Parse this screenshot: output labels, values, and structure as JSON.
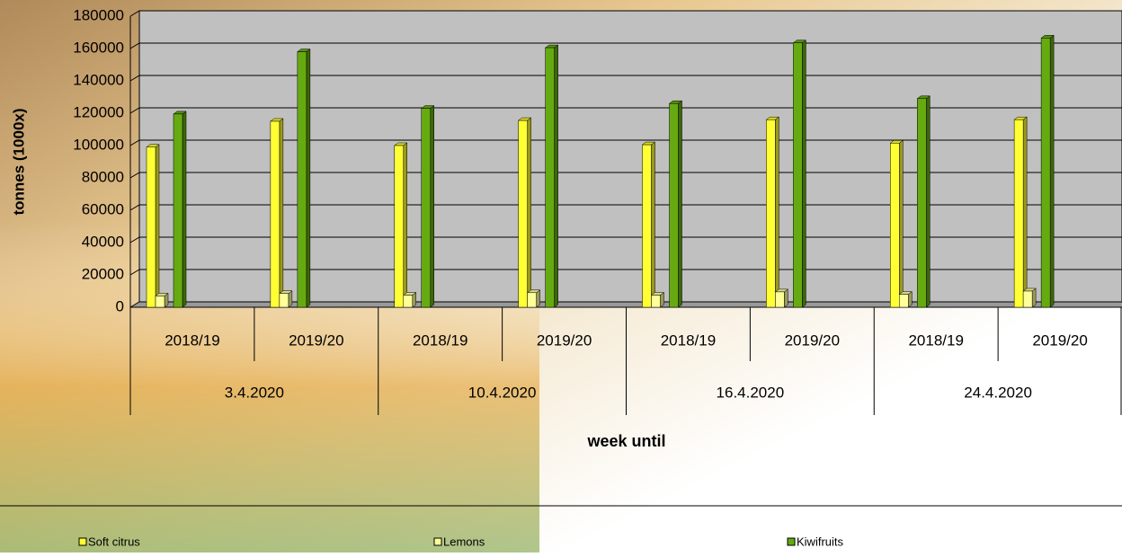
{
  "chart_data": {
    "type": "bar",
    "y_label": "tonnes (1000x)",
    "x_label": "week until",
    "categories": [
      "2018/19",
      "2019/20",
      "2018/19",
      "2019/20",
      "2018/19",
      "2019/20",
      "2018/19",
      "2019/20"
    ],
    "category_groups": [
      "3.4.2020",
      "10.4.2020",
      "16.4.2020",
      "24.4.2020"
    ],
    "series": [
      {
        "name": "Soft citrus",
        "color": "#ffff33",
        "values": [
          99000,
          115000,
          100000,
          115500,
          100500,
          116000,
          101500,
          116000
        ]
      },
      {
        "name": "Lemons",
        "color": "#ffff99",
        "values": [
          7000,
          8500,
          7500,
          9000,
          7500,
          9500,
          8000,
          10000
        ]
      },
      {
        "name": "Kiwifruits",
        "color": "#66aa11",
        "values": [
          119500,
          158000,
          123000,
          160500,
          126000,
          163500,
          129000,
          166500
        ]
      }
    ],
    "ylim": [
      0,
      180000
    ],
    "yticks": [
      0,
      20000,
      40000,
      60000,
      80000,
      100000,
      120000,
      140000,
      160000,
      180000
    ],
    "grid": true,
    "legend": "bottom"
  }
}
